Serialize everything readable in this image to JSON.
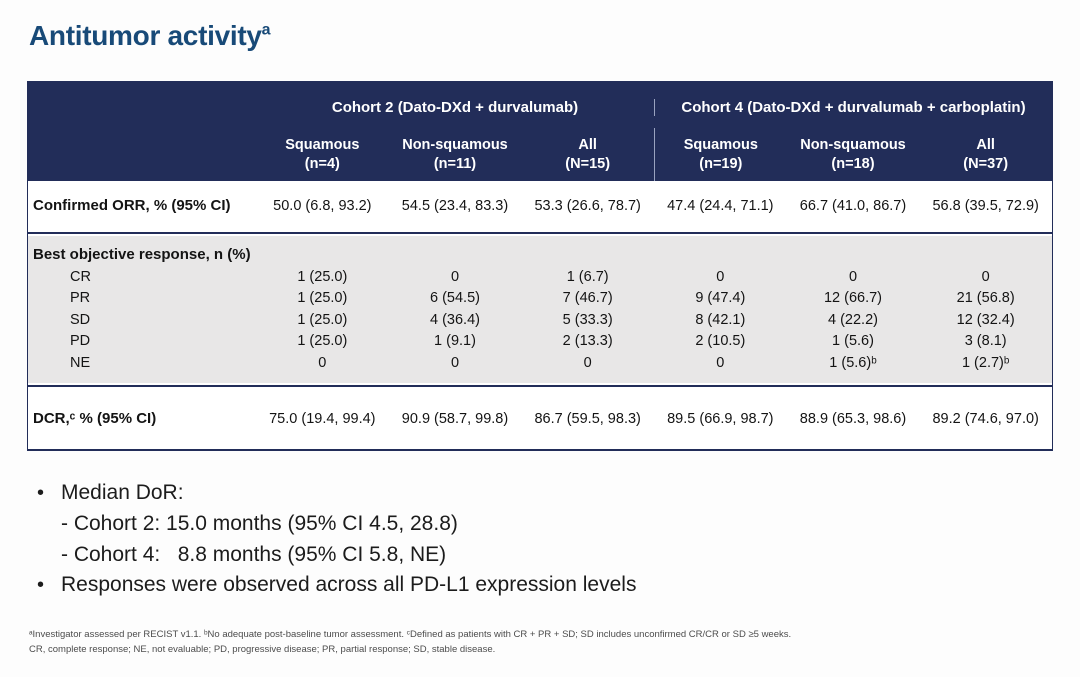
{
  "title": {
    "text": "Antitumor activity",
    "superscript": "a"
  },
  "colors": {
    "header_navy": "#222d59",
    "title_blue": "#184a78",
    "section_gray": "#e8e7e7"
  },
  "bullet_marker": "•",
  "table": {
    "group_headers": [
      "Cohort 2 (Dato-DXd + durvalumab)",
      "Cohort 4 (Dato-DXd + durvalumab + carboplatin)"
    ],
    "columns": [
      {
        "line1": "Squamous",
        "line2": "(n=4)"
      },
      {
        "line1": "Non-squamous",
        "line2": "(n=11)"
      },
      {
        "line1": "All",
        "line2": "(N=15)"
      },
      {
        "line1": "Squamous",
        "line2": "(n=19)"
      },
      {
        "line1": "Non-squamous",
        "line2": "(n=18)"
      },
      {
        "line1": "All",
        "line2": "(N=37)"
      }
    ],
    "orr": {
      "label": "Confirmed ORR, % (95% CI)",
      "values": [
        "50.0 (6.8, 93.2)",
        "54.5 (23.4, 83.3)",
        "53.3 (26.6, 78.7)",
        "47.4 (24.4, 71.1)",
        "66.7 (41.0, 86.7)",
        "56.8 (39.5, 72.9)"
      ]
    },
    "bor": {
      "label": "Best objective response, n (%)",
      "rows": [
        {
          "label": "CR",
          "values": [
            "1 (25.0)",
            "0",
            "1 (6.7)",
            "0",
            "0",
            "0"
          ]
        },
        {
          "label": "PR",
          "values": [
            "1 (25.0)",
            "6 (54.5)",
            "7 (46.7)",
            "9 (47.4)",
            "12 (66.7)",
            "21 (56.8)"
          ]
        },
        {
          "label": "SD",
          "values": [
            "1 (25.0)",
            "4 (36.4)",
            "5 (33.3)",
            "8 (42.1)",
            "4 (22.2)",
            "12 (32.4)"
          ]
        },
        {
          "label": "PD",
          "values": [
            "1 (25.0)",
            "1 (9.1)",
            "2 (13.3)",
            "2 (10.5)",
            "1 (5.6)",
            "3 (8.1)"
          ]
        },
        {
          "label": "NE",
          "values": [
            "0",
            "0",
            "0",
            "0",
            "1 (5.6)ᵇ",
            "1 (2.7)ᵇ"
          ]
        }
      ]
    },
    "dcr": {
      "label": "DCR,ᶜ % (95% CI)",
      "values": [
        "75.0 (19.4, 99.4)",
        "90.9 (58.7, 99.8)",
        "86.7 (59.5, 98.3)",
        "89.5 (66.9, 98.7)",
        "88.9 (65.3, 98.6)",
        "89.2 (74.6, 97.0)"
      ]
    }
  },
  "bullets": {
    "median_dor_heading": "Median DoR:",
    "median_dor_cohort2": "- Cohort 2: 15.0 months (95% CI 4.5, 28.8)",
    "median_dor_cohort4": "- Cohort 4:   8.8 months (95% CI 5.8, NE)",
    "responses": "Responses were observed across all PD-L1 expression levels"
  },
  "footnotes": {
    "line1": "ᵃInvestigator assessed per RECIST v1.1. ᵇNo adequate post-baseline tumor assessment. ᶜDefined as patients with CR + PR + SD; SD includes unconfirmed CR/CR or SD ≥5 weeks.",
    "line2": "CR, complete response; NE, not evaluable; PD, progressive disease; PR, partial response; SD, stable disease."
  }
}
